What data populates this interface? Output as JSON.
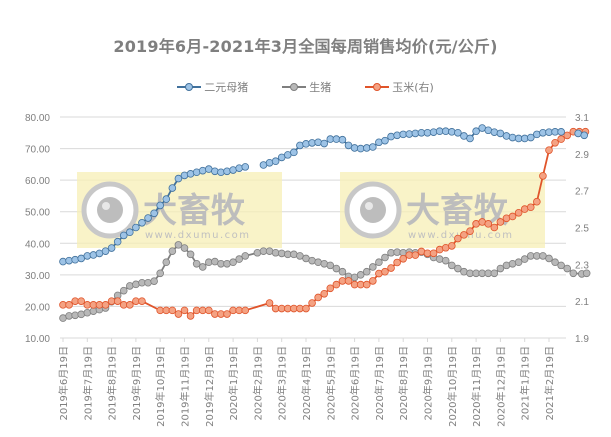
{
  "chart_data": {
    "type": "line",
    "title": "2019年6月-2021年3月全国每周销售均价(元/公斤)",
    "xlabel": "",
    "ylabel": "",
    "y_left": {
      "ticks": [
        "80.00",
        "70.00",
        "60.00",
        "50.00",
        "40.00",
        "30.00",
        "20.00",
        "10.00"
      ],
      "range": [
        10,
        80
      ]
    },
    "y_right": {
      "ticks": [
        "3.1",
        "2.9",
        "2.7",
        "2.5",
        "2.3",
        "2.1",
        "1.9"
      ],
      "range": [
        1.9,
        3.1
      ]
    },
    "grid": true,
    "legend_position": "top",
    "x_tick_labels": [
      "2019年6月19日",
      "2019年7月19日",
      "2019年8月19日",
      "2019年9月19日",
      "2019年10月19日",
      "2019年11月19日",
      "2019年12月19日",
      "2020年1月19日",
      "2020年2月19日",
      "2020年3月19日",
      "2020年4月19日",
      "2020年5月19日",
      "2020年6月19日",
      "2020年7月19日",
      "2020年8月19日",
      "2020年9月19日",
      "2020年10月19日",
      "2020年11月19日",
      "2020年12月19日",
      "2021年1月19日",
      "2021年2月19日"
    ],
    "series": [
      {
        "name": "二元母猪",
        "axis": "left",
        "color": "#5b9bd5",
        "points": [
          [
            0,
            34.2
          ],
          [
            0.25,
            34.5
          ],
          [
            0.5,
            34.8
          ],
          [
            0.75,
            35.2
          ],
          [
            1,
            36
          ],
          [
            1.25,
            36.3
          ],
          [
            1.5,
            36.8
          ],
          [
            1.75,
            37.5
          ],
          [
            2,
            38.5
          ],
          [
            2.25,
            40.5
          ],
          [
            2.5,
            42.5
          ],
          [
            2.75,
            43.5
          ],
          [
            3,
            45
          ],
          [
            3.25,
            46.5
          ],
          [
            3.5,
            48
          ],
          [
            3.75,
            49.5
          ],
          [
            4,
            52
          ],
          [
            4.25,
            54
          ],
          [
            4.5,
            57.5
          ],
          [
            4.75,
            60.5
          ],
          [
            5,
            61.5
          ],
          [
            5.25,
            62
          ],
          [
            5.5,
            62.5
          ],
          [
            5.75,
            63
          ],
          [
            6,
            63.5
          ],
          [
            6.25,
            62.8
          ],
          [
            6.5,
            62.5
          ],
          [
            6.75,
            62.8
          ],
          [
            7,
            63.2
          ],
          [
            7.25,
            63.8
          ],
          [
            7.5,
            64.2
          ],
          [
            8.25,
            64.8
          ],
          [
            8.5,
            65.5
          ],
          [
            8.75,
            66
          ],
          [
            9,
            67.2
          ],
          [
            9.25,
            68
          ],
          [
            9.5,
            68.8
          ],
          [
            9.75,
            71
          ],
          [
            10,
            71.5
          ],
          [
            10.25,
            71.8
          ],
          [
            10.5,
            72
          ],
          [
            10.75,
            71.6
          ],
          [
            11,
            73
          ],
          [
            11.25,
            73
          ],
          [
            11.5,
            72.8
          ],
          [
            11.75,
            71
          ],
          [
            12,
            70.2
          ],
          [
            12.25,
            70
          ],
          [
            12.5,
            70.2
          ],
          [
            12.75,
            70.5
          ],
          [
            13,
            72
          ],
          [
            13.25,
            72.5
          ],
          [
            13.5,
            73.8
          ],
          [
            13.75,
            74.2
          ],
          [
            14,
            74.5
          ],
          [
            14.25,
            74.6
          ],
          [
            14.5,
            74.8
          ],
          [
            14.75,
            75
          ],
          [
            15,
            75
          ],
          [
            15.25,
            75.2
          ],
          [
            15.5,
            75.5
          ],
          [
            15.75,
            75.5
          ],
          [
            16,
            75.3
          ],
          [
            16.25,
            75
          ],
          [
            16.5,
            74
          ],
          [
            16.75,
            73.2
          ],
          [
            17,
            75.5
          ],
          [
            17.25,
            76.5
          ],
          [
            17.5,
            75.8
          ],
          [
            17.75,
            75.2
          ],
          [
            18,
            74.8
          ],
          [
            18.25,
            74
          ],
          [
            18.5,
            73.5
          ],
          [
            18.75,
            73.2
          ],
          [
            19,
            73.2
          ],
          [
            19.25,
            73.5
          ],
          [
            19.5,
            74.5
          ],
          [
            19.75,
            75
          ],
          [
            20,
            75.2
          ],
          [
            20.25,
            75.3
          ],
          [
            20.5,
            75.3
          ],
          [
            21.2,
            74.8
          ],
          [
            21.45,
            74.2
          ]
        ]
      },
      {
        "name": "生猪",
        "axis": "left",
        "color": "#a5a5a5",
        "points": [
          [
            0,
            16.3
          ],
          [
            0.25,
            17
          ],
          [
            0.5,
            17.2
          ],
          [
            0.75,
            17.5
          ],
          [
            1,
            18
          ],
          [
            1.25,
            18.5
          ],
          [
            1.5,
            19
          ],
          [
            1.75,
            19.5
          ],
          [
            2,
            21.5
          ],
          [
            2.25,
            23.5
          ],
          [
            2.5,
            25
          ],
          [
            2.75,
            26.5
          ],
          [
            3,
            27
          ],
          [
            3.25,
            27.5
          ],
          [
            3.5,
            27.5
          ],
          [
            3.75,
            28
          ],
          [
            4,
            30.5
          ],
          [
            4.25,
            34
          ],
          [
            4.5,
            37.5
          ],
          [
            4.75,
            39.5
          ],
          [
            5,
            38.5
          ],
          [
            5.25,
            36.5
          ],
          [
            5.5,
            33.5
          ],
          [
            5.75,
            32.5
          ],
          [
            6,
            34
          ],
          [
            6.25,
            34.2
          ],
          [
            6.5,
            33.5
          ],
          [
            6.75,
            33.5
          ],
          [
            7,
            34
          ],
          [
            7.25,
            35
          ],
          [
            7.5,
            36
          ],
          [
            8,
            37
          ],
          [
            8.25,
            37.5
          ],
          [
            8.5,
            37.5
          ],
          [
            8.75,
            37
          ],
          [
            9,
            36.8
          ],
          [
            9.25,
            36.5
          ],
          [
            9.5,
            36.5
          ],
          [
            9.75,
            36
          ],
          [
            10,
            35.2
          ],
          [
            10.25,
            34.5
          ],
          [
            10.5,
            34
          ],
          [
            10.75,
            33.5
          ],
          [
            11,
            33
          ],
          [
            11.25,
            32
          ],
          [
            11.5,
            31
          ],
          [
            11.75,
            29.5
          ],
          [
            12,
            29.2
          ],
          [
            12.25,
            30
          ],
          [
            12.5,
            31
          ],
          [
            12.75,
            32.5
          ],
          [
            13,
            34
          ],
          [
            13.25,
            35.5
          ],
          [
            13.5,
            37
          ],
          [
            13.75,
            37.2
          ],
          [
            14,
            37
          ],
          [
            14.25,
            37.2
          ],
          [
            14.5,
            37
          ],
          [
            14.75,
            37.2
          ],
          [
            15,
            36.5
          ],
          [
            15.25,
            35.5
          ],
          [
            15.5,
            35
          ],
          [
            15.75,
            34.5
          ],
          [
            16,
            33
          ],
          [
            16.25,
            32
          ],
          [
            16.5,
            31
          ],
          [
            16.75,
            30.5
          ],
          [
            17,
            30.5
          ],
          [
            17.25,
            30.5
          ],
          [
            17.5,
            30.5
          ],
          [
            17.75,
            30.5
          ],
          [
            18,
            32
          ],
          [
            18.25,
            33
          ],
          [
            18.5,
            33.5
          ],
          [
            18.75,
            34
          ],
          [
            19,
            35
          ],
          [
            19.25,
            36
          ],
          [
            19.5,
            36
          ],
          [
            19.75,
            36
          ],
          [
            20,
            35.2
          ],
          [
            20.25,
            34
          ],
          [
            20.5,
            33
          ],
          [
            20.75,
            32
          ],
          [
            21,
            30.5
          ],
          [
            21.35,
            30.3
          ],
          [
            21.55,
            30.5
          ]
        ]
      },
      {
        "name": "玉米(右)",
        "axis": "right",
        "color": "#ed7d31",
        "points": [
          [
            0,
            2.08
          ],
          [
            0.25,
            2.08
          ],
          [
            0.5,
            2.1
          ],
          [
            0.75,
            2.1
          ],
          [
            1,
            2.08
          ],
          [
            1.25,
            2.08
          ],
          [
            1.5,
            2.08
          ],
          [
            1.75,
            2.08
          ],
          [
            2,
            2.1
          ],
          [
            2.25,
            2.1
          ],
          [
            2.5,
            2.08
          ],
          [
            2.75,
            2.08
          ],
          [
            3,
            2.1
          ],
          [
            3.25,
            2.1
          ],
          [
            4,
            2.05
          ],
          [
            4.25,
            2.05
          ],
          [
            4.5,
            2.05
          ],
          [
            4.75,
            2.03
          ],
          [
            5,
            2.05
          ],
          [
            5.25,
            2.02
          ],
          [
            5.5,
            2.05
          ],
          [
            5.75,
            2.05
          ],
          [
            6,
            2.05
          ],
          [
            6.25,
            2.03
          ],
          [
            6.5,
            2.03
          ],
          [
            6.75,
            2.03
          ],
          [
            7,
            2.05
          ],
          [
            7.25,
            2.05
          ],
          [
            7.5,
            2.05
          ],
          [
            8.5,
            2.09
          ],
          [
            8.75,
            2.06
          ],
          [
            9,
            2.06
          ],
          [
            9.25,
            2.06
          ],
          [
            9.5,
            2.06
          ],
          [
            9.75,
            2.06
          ],
          [
            10,
            2.06
          ],
          [
            10.25,
            2.09
          ],
          [
            10.5,
            2.12
          ],
          [
            10.75,
            2.14
          ],
          [
            11,
            2.17
          ],
          [
            11.25,
            2.19
          ],
          [
            11.5,
            2.21
          ],
          [
            11.75,
            2.21
          ],
          [
            12,
            2.19
          ],
          [
            12.25,
            2.19
          ],
          [
            12.5,
            2.19
          ],
          [
            12.75,
            2.21
          ],
          [
            13,
            2.25
          ],
          [
            13.25,
            2.26
          ],
          [
            13.5,
            2.28
          ],
          [
            13.75,
            2.31
          ],
          [
            14,
            2.33
          ],
          [
            14.25,
            2.35
          ],
          [
            14.5,
            2.35
          ],
          [
            14.75,
            2.37
          ],
          [
            15,
            2.36
          ],
          [
            15.25,
            2.36
          ],
          [
            15.5,
            2.38
          ],
          [
            15.75,
            2.39
          ],
          [
            16,
            2.4
          ],
          [
            16.25,
            2.44
          ],
          [
            16.5,
            2.46
          ],
          [
            16.75,
            2.48
          ],
          [
            17,
            2.52
          ],
          [
            17.25,
            2.53
          ],
          [
            17.5,
            2.52
          ],
          [
            17.75,
            2.5
          ],
          [
            18,
            2.53
          ],
          [
            18.25,
            2.55
          ],
          [
            18.5,
            2.56
          ],
          [
            18.75,
            2.58
          ],
          [
            19,
            2.6
          ],
          [
            19.25,
            2.61
          ],
          [
            19.5,
            2.64
          ],
          [
            19.75,
            2.78
          ],
          [
            20,
            2.92
          ],
          [
            20.25,
            2.96
          ],
          [
            20.5,
            2.98
          ],
          [
            20.75,
            3.0
          ],
          [
            21,
            3.02
          ],
          [
            21.25,
            3.02
          ],
          [
            21.5,
            3.02
          ]
        ]
      }
    ]
  },
  "legend": [
    {
      "label": "二元母猪",
      "color": "#5b9bd5"
    },
    {
      "label": "生猪",
      "color": "#a5a5a5"
    },
    {
      "label": "玉米(右)",
      "color": "#ed7d31"
    }
  ],
  "watermark": {
    "brand": "大畜牧",
    "url": "www.dxumu.com"
  }
}
